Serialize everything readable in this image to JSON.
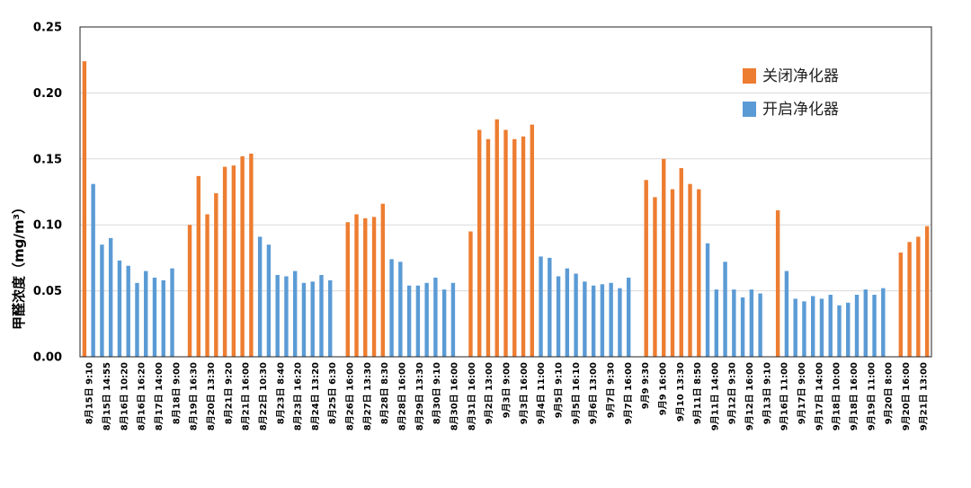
{
  "chart_data": {
    "type": "bar",
    "title": "",
    "xlabel": "",
    "ylabel": "甲醛浓度（mg/m³）",
    "ylim": [
      0,
      0.25
    ],
    "yticks": [
      "0.00",
      "0.05",
      "0.10",
      "0.15",
      "0.20",
      "0.25"
    ],
    "grid": true,
    "legend_position": "top-right",
    "colors": {
      "关闭净化器": "#ED7D31",
      "开启净化器": "#5B9BD5"
    },
    "legend": [
      {
        "name": "关闭净化器",
        "color": "#ED7D31"
      },
      {
        "name": "开启净化器",
        "color": "#5B9BD5"
      }
    ],
    "categories": [
      "8月15日 9:10",
      "8月15日 14:55",
      "8月16日 10:20",
      "8月16日 16:20",
      "8月17日 14:00",
      "8月18日 9:00",
      "8月19日 16:30",
      "8月20日 13:30",
      "8月21日 9:20",
      "8月21日 16:00",
      "8月22日 10:30",
      "8月23日 8:40",
      "8月23日 16:20",
      "8月24日 13:20",
      "8月25日 6:30",
      "8月26日 16:00",
      "8月27日 13:30",
      "8月28日 8:30",
      "8月28日 16:00",
      "8月29日 13:30",
      "8月30日 9:10",
      "8月30日 16:00",
      "8月31日 16:00",
      "9月2日 13:00",
      "9月3日 9:00",
      "9月3日 16:00",
      "9月4日 11:00",
      "9月5日 9:10",
      "9月5日 16:10",
      "9月6日 13:00",
      "9月7日 9:30",
      "9月7日 16:00",
      "9月9 9:30",
      "9月9 16:00",
      "9月10 13:30",
      "9月11日 8:50",
      "9月11日 14:00",
      "9月12日 9:30",
      "9月12日 16:00",
      "9月13日 9:10",
      "9月16日 11:00",
      "9月17日 9:00",
      "9月17日 14:00",
      "9月18日 10:00",
      "9月18日 16:00",
      "9月19日 11:00",
      "9月20日 8:00",
      "9月20日 16:00",
      "9月21日 13:00"
    ],
    "bars": [
      {
        "s": "关闭净化器",
        "v": 0.224
      },
      {
        "s": "开启净化器",
        "v": 0.131
      },
      {
        "s": "开启净化器",
        "v": 0.085
      },
      {
        "s": "开启净化器",
        "v": 0.09
      },
      {
        "s": "开启净化器",
        "v": 0.073
      },
      {
        "s": "开启净化器",
        "v": 0.069
      },
      {
        "s": "开启净化器",
        "v": 0.056
      },
      {
        "s": "开启净化器",
        "v": 0.065
      },
      {
        "s": "开启净化器",
        "v": 0.06
      },
      {
        "s": "开启净化器",
        "v": 0.058
      },
      {
        "s": "开启净化器",
        "v": 0.067
      },
      {
        "s": "gap",
        "v": 0
      },
      {
        "s": "关闭净化器",
        "v": 0.1
      },
      {
        "s": "关闭净化器",
        "v": 0.137
      },
      {
        "s": "关闭净化器",
        "v": 0.108
      },
      {
        "s": "关闭净化器",
        "v": 0.124
      },
      {
        "s": "关闭净化器",
        "v": 0.144
      },
      {
        "s": "关闭净化器",
        "v": 0.145
      },
      {
        "s": "关闭净化器",
        "v": 0.152
      },
      {
        "s": "关闭净化器",
        "v": 0.154
      },
      {
        "s": "开启净化器",
        "v": 0.091
      },
      {
        "s": "开启净化器",
        "v": 0.085
      },
      {
        "s": "开启净化器",
        "v": 0.062
      },
      {
        "s": "开启净化器",
        "v": 0.061
      },
      {
        "s": "开启净化器",
        "v": 0.065
      },
      {
        "s": "开启净化器",
        "v": 0.056
      },
      {
        "s": "开启净化器",
        "v": 0.057
      },
      {
        "s": "开启净化器",
        "v": 0.062
      },
      {
        "s": "开启净化器",
        "v": 0.058
      },
      {
        "s": "gap",
        "v": 0
      },
      {
        "s": "关闭净化器",
        "v": 0.102
      },
      {
        "s": "关闭净化器",
        "v": 0.108
      },
      {
        "s": "关闭净化器",
        "v": 0.105
      },
      {
        "s": "关闭净化器",
        "v": 0.106
      },
      {
        "s": "关闭净化器",
        "v": 0.116
      },
      {
        "s": "开启净化器",
        "v": 0.074
      },
      {
        "s": "开启净化器",
        "v": 0.072
      },
      {
        "s": "开启净化器",
        "v": 0.054
      },
      {
        "s": "开启净化器",
        "v": 0.054
      },
      {
        "s": "开启净化器",
        "v": 0.056
      },
      {
        "s": "开启净化器",
        "v": 0.06
      },
      {
        "s": "开启净化器",
        "v": 0.051
      },
      {
        "s": "开启净化器",
        "v": 0.056
      },
      {
        "s": "gap",
        "v": 0
      },
      {
        "s": "关闭净化器",
        "v": 0.095
      },
      {
        "s": "关闭净化器",
        "v": 0.172
      },
      {
        "s": "关闭净化器",
        "v": 0.165
      },
      {
        "s": "关闭净化器",
        "v": 0.18
      },
      {
        "s": "关闭净化器",
        "v": 0.172
      },
      {
        "s": "关闭净化器",
        "v": 0.165
      },
      {
        "s": "关闭净化器",
        "v": 0.167
      },
      {
        "s": "关闭净化器",
        "v": 0.176
      },
      {
        "s": "开启净化器",
        "v": 0.076
      },
      {
        "s": "开启净化器",
        "v": 0.075
      },
      {
        "s": "开启净化器",
        "v": 0.061
      },
      {
        "s": "开启净化器",
        "v": 0.067
      },
      {
        "s": "开启净化器",
        "v": 0.063
      },
      {
        "s": "开启净化器",
        "v": 0.057
      },
      {
        "s": "开启净化器",
        "v": 0.054
      },
      {
        "s": "开启净化器",
        "v": 0.055
      },
      {
        "s": "开启净化器",
        "v": 0.056
      },
      {
        "s": "开启净化器",
        "v": 0.052
      },
      {
        "s": "开启净化器",
        "v": 0.06
      },
      {
        "s": "gap",
        "v": 0
      },
      {
        "s": "关闭净化器",
        "v": 0.134
      },
      {
        "s": "关闭净化器",
        "v": 0.121
      },
      {
        "s": "关闭净化器",
        "v": 0.15
      },
      {
        "s": "关闭净化器",
        "v": 0.127
      },
      {
        "s": "关闭净化器",
        "v": 0.143
      },
      {
        "s": "关闭净化器",
        "v": 0.131
      },
      {
        "s": "关闭净化器",
        "v": 0.127
      },
      {
        "s": "开启净化器",
        "v": 0.086
      },
      {
        "s": "开启净化器",
        "v": 0.051
      },
      {
        "s": "开启净化器",
        "v": 0.072
      },
      {
        "s": "开启净化器",
        "v": 0.051
      },
      {
        "s": "开启净化器",
        "v": 0.045
      },
      {
        "s": "开启净化器",
        "v": 0.051
      },
      {
        "s": "开启净化器",
        "v": 0.048
      },
      {
        "s": "gap",
        "v": 0
      },
      {
        "s": "关闭净化器",
        "v": 0.111
      },
      {
        "s": "开启净化器",
        "v": 0.065
      },
      {
        "s": "开启净化器",
        "v": 0.044
      },
      {
        "s": "开启净化器",
        "v": 0.042
      },
      {
        "s": "开启净化器",
        "v": 0.046
      },
      {
        "s": "开启净化器",
        "v": 0.044
      },
      {
        "s": "开启净化器",
        "v": 0.047
      },
      {
        "s": "开启净化器",
        "v": 0.039
      },
      {
        "s": "开启净化器",
        "v": 0.041
      },
      {
        "s": "开启净化器",
        "v": 0.047
      },
      {
        "s": "开启净化器",
        "v": 0.051
      },
      {
        "s": "开启净化器",
        "v": 0.047
      },
      {
        "s": "开启净化器",
        "v": 0.052
      },
      {
        "s": "gap",
        "v": 0
      },
      {
        "s": "关闭净化器",
        "v": 0.079
      },
      {
        "s": "关闭净化器",
        "v": 0.087
      },
      {
        "s": "关闭净化器",
        "v": 0.091
      },
      {
        "s": "关闭净化器",
        "v": 0.099
      }
    ]
  }
}
